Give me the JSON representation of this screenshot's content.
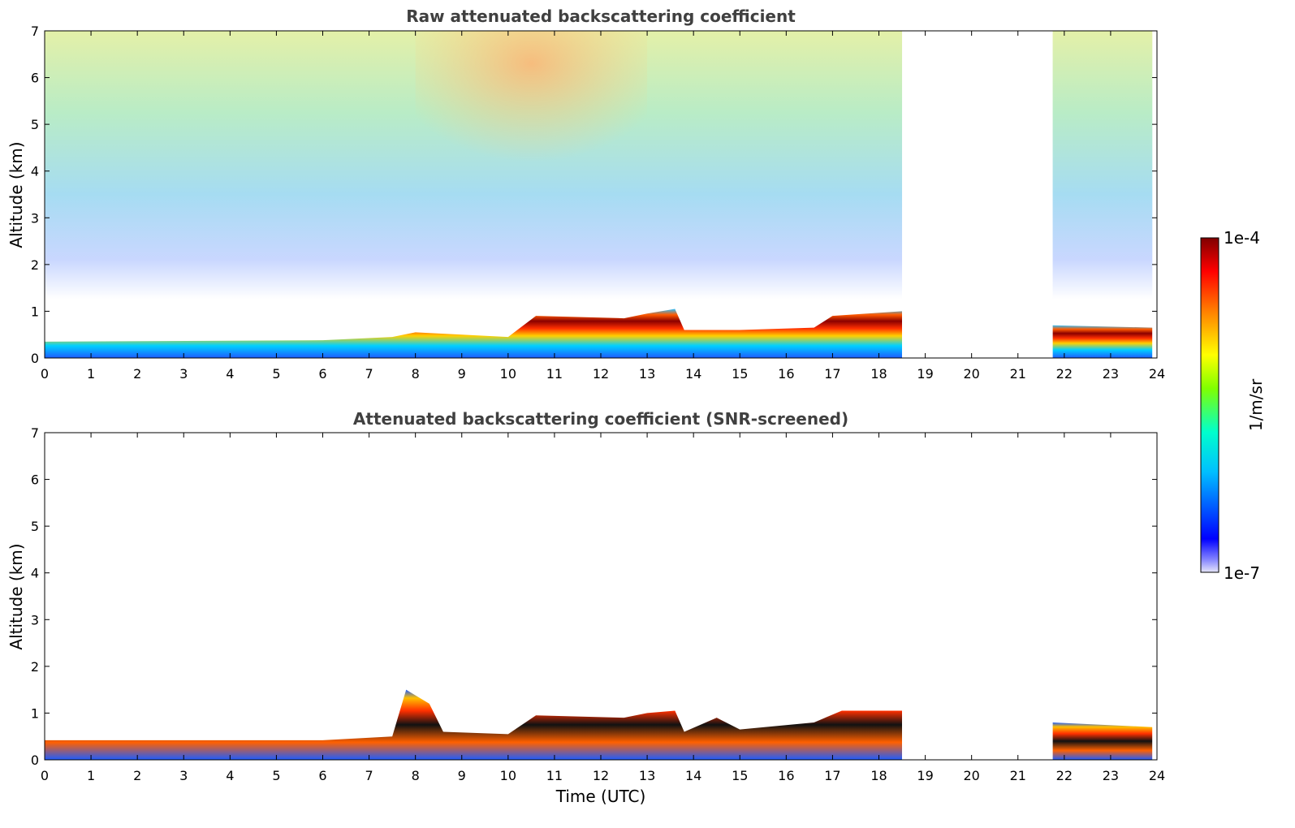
{
  "chart_data": [
    {
      "type": "heatmap",
      "title": "Raw attenuated backscattering coefficient",
      "xlabel": "",
      "ylabel": "Altitude (km)",
      "xlim": [
        0,
        24
      ],
      "ylim": [
        0,
        7
      ],
      "xticks": [
        0,
        1,
        2,
        3,
        4,
        5,
        6,
        7,
        8,
        9,
        10,
        11,
        12,
        13,
        14,
        15,
        16,
        17,
        18,
        19,
        20,
        21,
        22,
        23,
        24
      ],
      "yticks": [
        0,
        1,
        2,
        3,
        4,
        5,
        6,
        7
      ],
      "gaps_utc": [
        [
          18.5,
          21.75
        ],
        [
          23.9,
          24
        ]
      ],
      "boundary_layer_top_km": [
        {
          "t": 0,
          "h": 0.35
        },
        {
          "t": 6,
          "h": 0.38
        },
        {
          "t": 7.5,
          "h": 0.45
        },
        {
          "t": 8,
          "h": 0.55
        },
        {
          "t": 10,
          "h": 0.45
        },
        {
          "t": 10.6,
          "h": 0.9
        },
        {
          "t": 12.5,
          "h": 0.85
        },
        {
          "t": 13,
          "h": 0.95
        },
        {
          "t": 13.6,
          "h": 1.05
        },
        {
          "t": 13.8,
          "h": 0.6
        },
        {
          "t": 15,
          "h": 0.6
        },
        {
          "t": 16.6,
          "h": 0.65
        },
        {
          "t": 17,
          "h": 0.9
        },
        {
          "t": 18.5,
          "h": 1.0
        },
        {
          "t": 21.75,
          "h": 0.7
        },
        {
          "t": 23.9,
          "h": 0.65
        }
      ]
    },
    {
      "type": "heatmap",
      "title": "Attenuated backscattering coefficient (SNR-screened)",
      "xlabel": "Time (UTC)",
      "ylabel": "Altitude (km)",
      "xlim": [
        0,
        24
      ],
      "ylim": [
        0,
        7
      ],
      "xticks": [
        0,
        1,
        2,
        3,
        4,
        5,
        6,
        7,
        8,
        9,
        10,
        11,
        12,
        13,
        14,
        15,
        16,
        17,
        18,
        19,
        20,
        21,
        22,
        23,
        24
      ],
      "yticks": [
        0,
        1,
        2,
        3,
        4,
        5,
        6,
        7
      ],
      "gaps_utc": [
        [
          18.5,
          21.75
        ],
        [
          23.9,
          24
        ]
      ],
      "boundary_layer_top_km": [
        {
          "t": 0,
          "h": 0.42
        },
        {
          "t": 6,
          "h": 0.42
        },
        {
          "t": 7.5,
          "h": 0.5
        },
        {
          "t": 7.8,
          "h": 1.5
        },
        {
          "t": 8.3,
          "h": 1.2
        },
        {
          "t": 8.6,
          "h": 0.6
        },
        {
          "t": 10,
          "h": 0.55
        },
        {
          "t": 10.6,
          "h": 0.95
        },
        {
          "t": 12.5,
          "h": 0.9
        },
        {
          "t": 13,
          "h": 1.0
        },
        {
          "t": 13.6,
          "h": 1.05
        },
        {
          "t": 13.8,
          "h": 0.6
        },
        {
          "t": 14.5,
          "h": 0.9
        },
        {
          "t": 15,
          "h": 0.65
        },
        {
          "t": 16.6,
          "h": 0.8
        },
        {
          "t": 17.2,
          "h": 1.05
        },
        {
          "t": 18.5,
          "h": 1.05
        },
        {
          "t": 21.75,
          "h": 0.8
        },
        {
          "t": 23.9,
          "h": 0.7
        }
      ]
    }
  ],
  "colorbar": {
    "label": "1/m/sr",
    "max_label": "1e-4",
    "min_label": "1e-7",
    "scale": "log",
    "colormap": "jet",
    "colors": [
      "#e6e6fa",
      "#0000ff",
      "#00bfff",
      "#00ffcc",
      "#80ff00",
      "#ffff00",
      "#ff8000",
      "#ff0000",
      "#800000"
    ]
  }
}
